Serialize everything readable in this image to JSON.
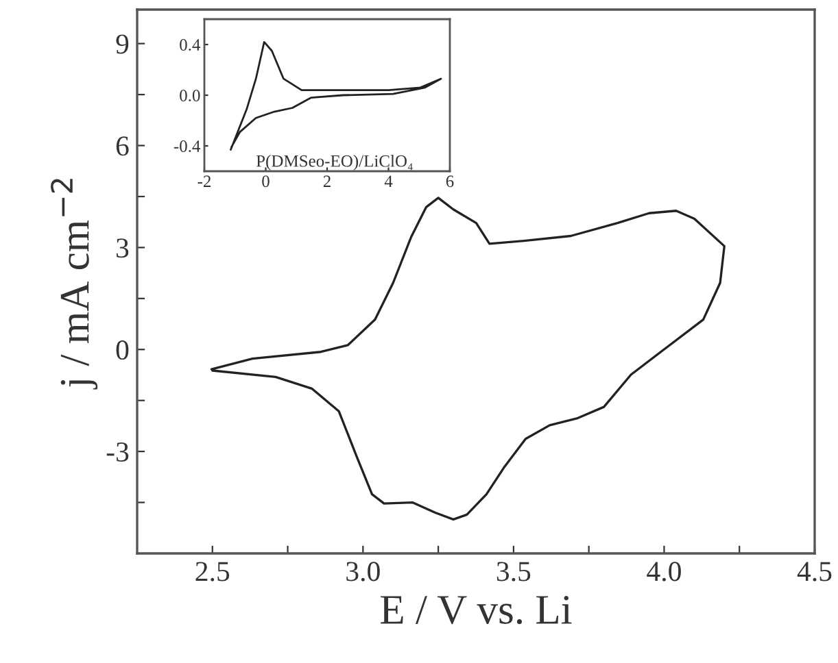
{
  "chart_data": [
    {
      "type": "line",
      "xlabel": "E / V vs. Li",
      "ylabel": "j / mA cm$^{−2}$",
      "xlim": [
        2.25,
        4.5
      ],
      "ylim": [
        -6,
        10
      ],
      "xticks": [
        {
          "value": 2.5,
          "label": "2.5"
        },
        {
          "value": 2.75,
          "label": null
        },
        {
          "value": 3.0,
          "label": "3.0"
        },
        {
          "value": 3.25,
          "label": null
        },
        {
          "value": 3.5,
          "label": "3.5"
        },
        {
          "value": 3.75,
          "label": null
        },
        {
          "value": 4.0,
          "label": "4.0"
        },
        {
          "value": 4.25,
          "label": null
        },
        {
          "value": 4.5,
          "label": "4.5"
        }
      ],
      "yticks": [
        {
          "value": -4.5,
          "label": null
        },
        -3,
        {
          "value": -1.5,
          "label": null
        },
        0,
        {
          "value": 1.5,
          "label": null
        },
        3,
        {
          "value": 4.5,
          "label": null
        },
        6,
        {
          "value": 7.5,
          "label": null
        },
        9
      ],
      "grid": false,
      "legend": false,
      "series": [
        {
          "color": "#222222",
          "x": [
            2.497,
            2.633,
            2.86,
            2.95,
            3.04,
            3.1,
            3.16,
            3.21,
            3.25,
            3.3,
            3.376,
            3.42,
            3.54,
            3.69,
            3.845,
            3.95,
            4.04,
            4.1,
            4.2,
            4.186,
            4.13,
            4.01,
            3.89,
            3.8,
            3.71,
            3.62,
            3.54,
            3.47,
            3.41,
            3.345,
            3.3,
            3.24,
            3.164,
            3.07,
            3.03,
            2.98,
            2.92,
            2.83,
            2.71,
            2.5
          ],
          "values": [
            -0.58,
            -0.27,
            -0.07,
            0.13,
            0.88,
            1.96,
            3.31,
            4.19,
            4.46,
            4.12,
            3.72,
            3.11,
            3.2,
            3.34,
            3.72,
            4.01,
            4.08,
            3.85,
            3.04,
            1.96,
            0.88,
            0.07,
            -0.74,
            -1.69,
            -2.03,
            -2.23,
            -2.63,
            -3.45,
            -4.26,
            -4.86,
            -5.0,
            -4.8,
            -4.5,
            -4.53,
            -4.26,
            -3.17,
            -1.82,
            -1.15,
            -0.81,
            -0.62
          ]
        }
      ]
    },
    {
      "type": "line",
      "annotations": [
        "P(DMSeo-EO)/LiClO₄"
      ],
      "xlim": [
        -2,
        6
      ],
      "ylim": [
        -0.6,
        0.6
      ],
      "xticks": [
        -2,
        0,
        2,
        4,
        6
      ],
      "yticks": [
        {
          "value": -0.4,
          "label": "-0.4"
        },
        {
          "value": 0.0,
          "label": "0.0"
        },
        {
          "value": 0.4,
          "label": "0.4"
        }
      ],
      "grid": false,
      "legend": false,
      "series": [
        {
          "color": "#222222",
          "x": [
            -1.14,
            -0.62,
            -0.32,
            -0.05,
            0.2,
            0.58,
            1.17,
            2.51,
            4.0,
            5.04,
            5.71,
            5.19,
            4.15,
            2.51,
            1.47,
            0.87,
            0.28,
            -0.32,
            -0.84,
            -1.12
          ],
          "values": [
            -0.43,
            -0.11,
            0.13,
            0.42,
            0.35,
            0.13,
            0.04,
            0.04,
            0.04,
            0.06,
            0.13,
            0.06,
            0.01,
            0.0,
            -0.02,
            -0.1,
            -0.13,
            -0.18,
            -0.29,
            -0.41
          ]
        }
      ]
    }
  ]
}
